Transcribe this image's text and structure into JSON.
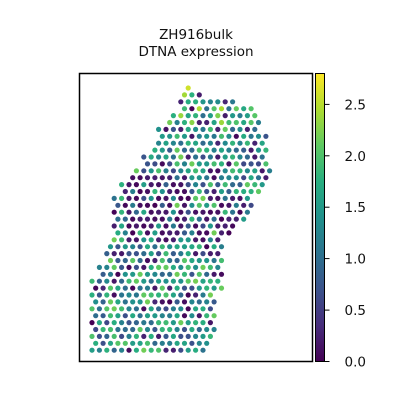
{
  "chart_data": {
    "type": "scatter",
    "subtype": "spatial-hex-spots",
    "title": "ZH916bulk",
    "subtitle": "DTNA expression",
    "xlabel": "",
    "ylabel": "",
    "axis_ticks_shown": false,
    "grid": false,
    "colorbar": {
      "colormap": "viridis",
      "position": "right",
      "min": 0.0,
      "max": 2.8,
      "ticks": [
        0.0,
        0.5,
        1.0,
        1.5,
        2.0,
        2.5
      ],
      "tick_labels": [
        "0.0",
        "0.5",
        "1.0",
        "1.5",
        "2.0",
        "2.5"
      ]
    },
    "tissue_region": {
      "description": "hexagonal grid of spots; y measured as row from top, x as column",
      "row_spans": [
        [
          0,
          13,
          13
        ],
        [
          1,
          12,
          14
        ],
        [
          2,
          12,
          19
        ],
        [
          3,
          12,
          21
        ],
        [
          4,
          11,
          22
        ],
        [
          5,
          10,
          22
        ],
        [
          6,
          9,
          22
        ],
        [
          7,
          9,
          23
        ],
        [
          8,
          9,
          23
        ],
        [
          9,
          8,
          23
        ],
        [
          10,
          7,
          23
        ],
        [
          11,
          7,
          23
        ],
        [
          12,
          6,
          24
        ],
        [
          13,
          5,
          23
        ],
        [
          14,
          4,
          23
        ],
        [
          15,
          4,
          22
        ],
        [
          16,
          3,
          21
        ],
        [
          17,
          3,
          21
        ],
        [
          18,
          3,
          21
        ],
        [
          19,
          3,
          20
        ],
        [
          20,
          3,
          19
        ],
        [
          21,
          3,
          18
        ],
        [
          22,
          3,
          17
        ],
        [
          23,
          2,
          17
        ],
        [
          24,
          2,
          17
        ],
        [
          25,
          2,
          17
        ],
        [
          26,
          1,
          17
        ],
        [
          27,
          1,
          17
        ],
        [
          28,
          0,
          17
        ],
        [
          29,
          0,
          17
        ],
        [
          30,
          0,
          16
        ],
        [
          31,
          0,
          16
        ],
        [
          32,
          0,
          16
        ],
        [
          33,
          0,
          16
        ],
        [
          34,
          0,
          16
        ],
        [
          35,
          0,
          16
        ],
        [
          36,
          0,
          16
        ],
        [
          37,
          0,
          15
        ],
        [
          38,
          0,
          15
        ]
      ],
      "low_expression_patches": [
        {
          "row_from": 13,
          "row_to": 22,
          "col_from": 5,
          "col_to": 12
        },
        {
          "row_from": 16,
          "row_to": 24,
          "col_from": 14,
          "col_to": 20
        }
      ],
      "spot_values_sample": [
        {
          "row": 0,
          "col": 13,
          "value": 2.6
        },
        {
          "row": 1,
          "col": 12,
          "value": 2.4
        },
        {
          "row": 5,
          "col": 18,
          "value": 1.9
        },
        {
          "row": 12,
          "col": 22,
          "value": 1.6
        },
        {
          "row": 18,
          "col": 8,
          "value": 0.1
        },
        {
          "row": 20,
          "col": 17,
          "value": 0.2
        },
        {
          "row": 30,
          "col": 6,
          "value": 1.1
        },
        {
          "row": 38,
          "col": 3,
          "value": 0.9
        }
      ]
    }
  }
}
